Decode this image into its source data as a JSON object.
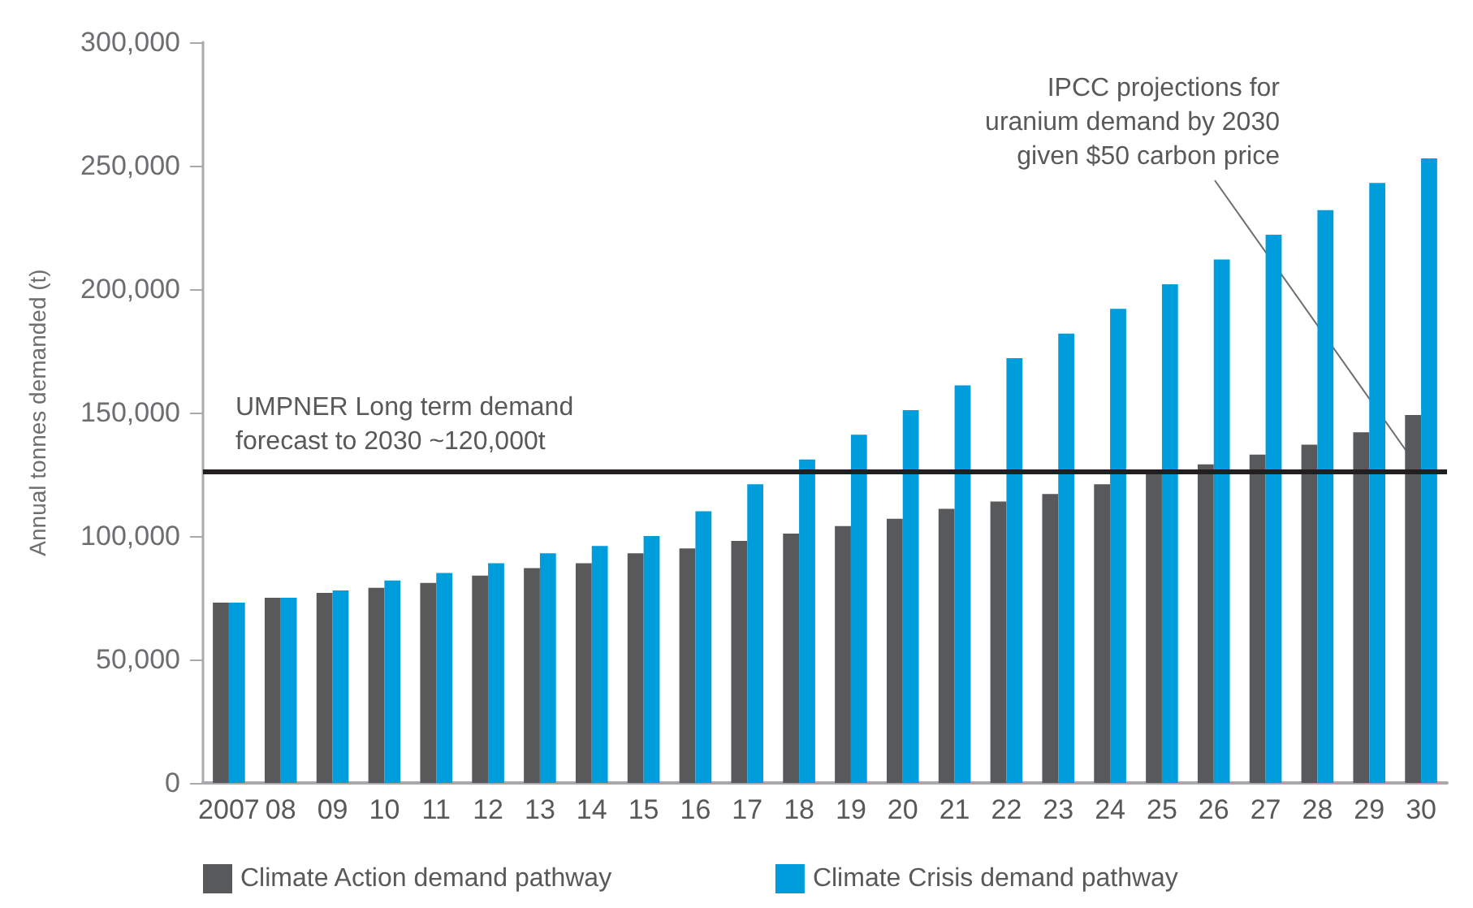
{
  "chart_data": {
    "type": "bar",
    "ylabel": "Annual tonnes demanded (t)",
    "categories": [
      "2007",
      "08",
      "09",
      "10",
      "11",
      "12",
      "13",
      "14",
      "15",
      "16",
      "17",
      "18",
      "19",
      "20",
      "21",
      "22",
      "23",
      "24",
      "25",
      "26",
      "27",
      "28",
      "29",
      "30"
    ],
    "series": [
      {
        "name": "Climate Action demand pathway",
        "color": "#58595b",
        "values": [
          73000,
          75000,
          77000,
          79000,
          81000,
          84000,
          87000,
          89000,
          93000,
          95000,
          98000,
          101000,
          104000,
          107000,
          111000,
          114000,
          117000,
          121000,
          127000,
          129000,
          133000,
          137000,
          142000,
          149000
        ]
      },
      {
        "name": "Climate Crisis demand pathway",
        "color": "#009ddc",
        "values": [
          73000,
          75000,
          78000,
          82000,
          85000,
          89000,
          93000,
          96000,
          100000,
          110000,
          121000,
          131000,
          141000,
          151000,
          161000,
          172000,
          182000,
          192000,
          202000,
          212000,
          222000,
          232000,
          243000,
          253000
        ]
      }
    ],
    "ylim": [
      0,
      300000
    ],
    "yticks": [
      0,
      {
        "value": 50000,
        "label": "50,000"
      },
      {
        "value": 100000,
        "label": "100,000"
      },
      {
        "value": 150000,
        "label": "150,000"
      },
      {
        "value": 200000,
        "label": "200,000"
      },
      {
        "value": 250000,
        "label": "250,000"
      },
      {
        "value": 300000,
        "label": "300,000"
      }
    ],
    "grid": false,
    "legend": "bottom",
    "ref_lines": [
      {
        "axis": "y",
        "value": 126000,
        "label": "UMPNER Long term demand\nforecast to 2030 ~120,000t",
        "color": "#231f20"
      }
    ],
    "annotations": [
      {
        "text": "IPCC projections for\nuranium demand by 2030\ngiven $50 carbon price",
        "x": "30",
        "y": 126000
      }
    ]
  }
}
